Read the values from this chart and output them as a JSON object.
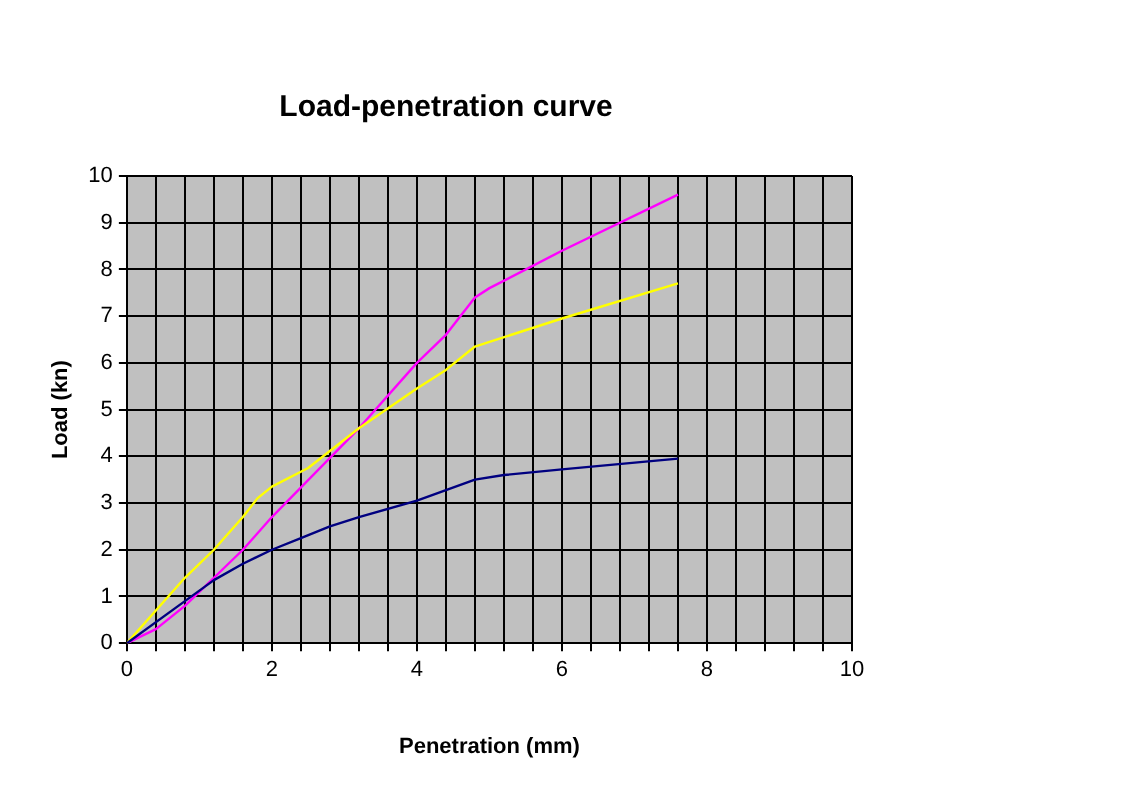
{
  "chart_data": {
    "type": "line",
    "title": "Load-penetration curve",
    "xlabel": "Penetration (mm)",
    "ylabel": "Load (kn)",
    "series": [
      {
        "color": "#000080",
        "x": [
          0,
          0.8,
          1.2,
          1.6,
          2.0,
          2.4,
          2.8,
          3.2,
          4.0,
          4.8,
          5.2,
          6.0,
          7.6
        ],
        "values": [
          0,
          0.9,
          1.35,
          1.7,
          2.0,
          2.25,
          2.5,
          2.7,
          3.05,
          3.5,
          3.6,
          3.72,
          3.95
        ]
      },
      {
        "color": "#ffff00",
        "x": [
          0,
          0.4,
          0.8,
          1.2,
          1.6,
          1.8,
          2.0,
          2.5,
          3.2,
          4.0,
          4.4,
          4.8,
          5.0,
          6.0,
          7.6
        ],
        "values": [
          0,
          0.7,
          1.4,
          2.0,
          2.7,
          3.1,
          3.35,
          3.75,
          4.6,
          5.45,
          5.85,
          6.35,
          6.45,
          6.95,
          7.7
        ]
      },
      {
        "color": "#ff00ff",
        "x": [
          0,
          0.4,
          0.8,
          1.6,
          2.0,
          3.2,
          4.0,
          4.4,
          4.8,
          5.0,
          6.0,
          7.6
        ],
        "values": [
          0,
          0.3,
          0.8,
          2.0,
          2.7,
          4.6,
          6.0,
          6.6,
          7.4,
          7.6,
          8.4,
          9.6
        ]
      }
    ],
    "xlim": [
      0,
      10
    ],
    "xticks": [
      0,
      {
        "value": 0.4,
        "label": null
      },
      {
        "value": 0.8,
        "label": null
      },
      {
        "value": 1.2,
        "label": null
      },
      {
        "value": 1.6,
        "label": null
      },
      2,
      {
        "value": 2.4,
        "label": null
      },
      {
        "value": 2.8,
        "label": null
      },
      {
        "value": 3.2,
        "label": null
      },
      {
        "value": 3.6,
        "label": null
      },
      4,
      {
        "value": 4.4,
        "label": null
      },
      {
        "value": 4.8,
        "label": null
      },
      {
        "value": 5.2,
        "label": null
      },
      {
        "value": 5.6,
        "label": null
      },
      6,
      {
        "value": 6.4,
        "label": null
      },
      {
        "value": 6.8,
        "label": null
      },
      {
        "value": 7.2,
        "label": null
      },
      {
        "value": 7.6,
        "label": null
      },
      8,
      {
        "value": 8.4,
        "label": null
      },
      {
        "value": 8.8,
        "label": null
      },
      {
        "value": 9.2,
        "label": null
      },
      {
        "value": 9.6,
        "label": null
      },
      10
    ],
    "ylim": [
      0,
      10
    ],
    "yticks": [
      0,
      1,
      2,
      3,
      4,
      5,
      6,
      7,
      8,
      9,
      10
    ],
    "grid": true,
    "legend": false,
    "marker": "none",
    "line_style": "solid"
  }
}
